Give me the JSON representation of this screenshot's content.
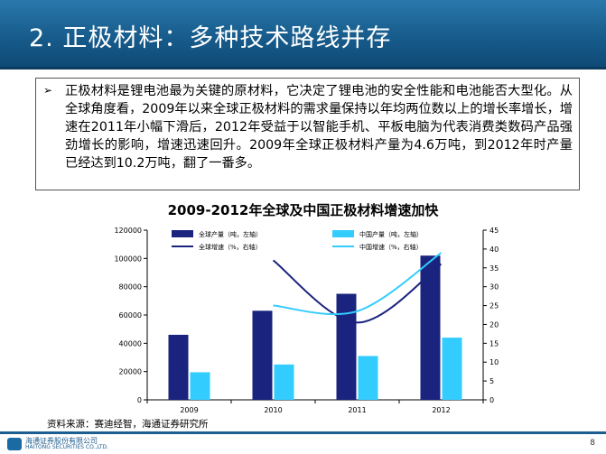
{
  "slide": {
    "title": "2. 正极材料：多种技术路线并存",
    "bullet_marker": "➢",
    "paragraph": "正极材料是锂电池最为关键的原材料，它决定了锂电池的安全性能和电池能否大型化。从全球角度看，2009年以来全球正极材料的需求量保持以年均两位数以上的增长率增长，增速在2011年小幅下滑后，2012年受益于以智能手机、平板电脑为代表消费类数码产品强劲增长的影响，增速迅速回升。2009年全球正极材料产量为4.6万吨，到2012年时产量已经达到10.2万吨，翻了一番多。",
    "source": "资料来源：赛迪经智，海通证券研究所",
    "company_cn": "海通证券股份有限公司",
    "company_en": "HAITONG SECURITIES CO.,LTD.",
    "page_number": "8"
  },
  "chart_data": {
    "type": "bar",
    "title": "2009-2012年全球及中国正极材料增速加快",
    "categories": [
      "2009",
      "2010",
      "2011",
      "2012"
    ],
    "ylim": [
      0,
      120000
    ],
    "y2lim": [
      0,
      45
    ],
    "yticks": [
      "0",
      "20000",
      "40000",
      "60000",
      "80000",
      "100000",
      "120000"
    ],
    "y2ticks": [
      "0",
      "5",
      "10",
      "15",
      "20",
      "25",
      "30",
      "35",
      "40",
      "45"
    ],
    "legend_position": "top",
    "series": [
      {
        "name": "全球产量（吨，左轴）",
        "kind": "bar",
        "color": "#1a237e",
        "values": [
          46000,
          63000,
          75000,
          102000
        ]
      },
      {
        "name": "中国产量（吨，左轴）",
        "kind": "bar",
        "color": "#33ccff",
        "values": [
          19500,
          25000,
          31000,
          44000
        ]
      },
      {
        "name": "全球增速（%，右轴）",
        "kind": "line",
        "color": "#1a237e",
        "values": [
          null,
          37,
          20.5,
          36
        ]
      },
      {
        "name": "中国增速（%，右轴）",
        "kind": "line",
        "color": "#33ccff",
        "values": [
          null,
          25,
          23.5,
          39
        ]
      }
    ]
  }
}
